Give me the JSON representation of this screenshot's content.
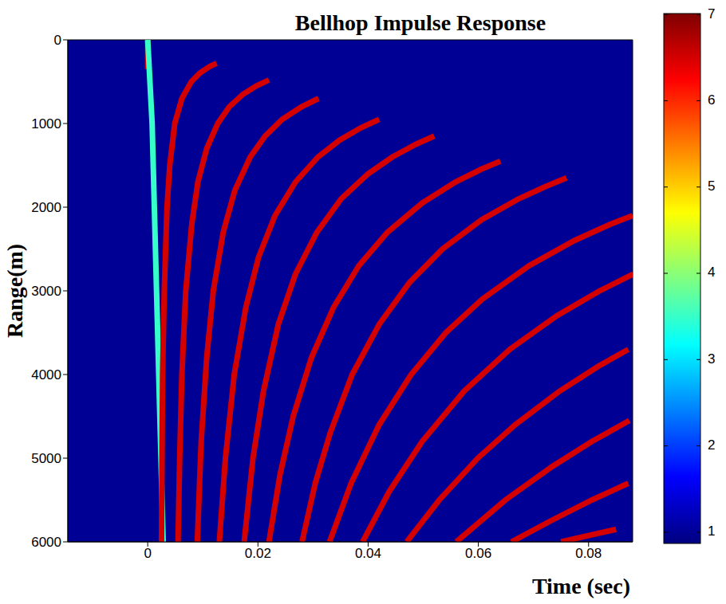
{
  "chart_data": {
    "type": "heatmap",
    "title": "Bellhop Impulse Response",
    "x_label": "Time (sec)",
    "y_label": "Range(m)",
    "xlim": [
      -0.0145,
      0.088
    ],
    "xticks": [
      0,
      0.02,
      0.04,
      0.06,
      0.08
    ],
    "ylim": [
      0,
      6000
    ],
    "yticks": [
      0,
      1000,
      2000,
      3000,
      4000,
      5000,
      6000
    ],
    "grid": false,
    "background_value": 1,
    "colorbar": {
      "range": [
        0.87,
        7.01
      ],
      "ticks": [
        1,
        2,
        3,
        4,
        5,
        6,
        7
      ]
    },
    "series": [
      {
        "value": 6.5,
        "x": [
          0,
          0
        ],
        "y": [
          0,
          350
        ]
      },
      {
        "value": 3.5,
        "x": [
          0,
          0.0008,
          0.0012,
          0.0016,
          0.002,
          0.0024,
          0.0028
        ],
        "y": [
          0,
          1000,
          2000,
          3000,
          4000,
          5000,
          6000
        ]
      },
      {
        "value": 6.5,
        "x": [
          0.0125,
          0.0112,
          0.0094,
          0.0079,
          0.0062,
          0.0049,
          0.004,
          0.0035,
          0.003,
          0.0027,
          0.0026,
          0.0025
        ],
        "y": [
          280,
          320,
          400,
          500,
          700,
          1000,
          1500,
          2000,
          3000,
          4000,
          5000,
          6000
        ]
      },
      {
        "value": 6.5,
        "x": [
          0.022,
          0.0197,
          0.0173,
          0.0148,
          0.0127,
          0.0107,
          0.0091,
          0.008,
          0.0069,
          0.0062,
          0.0058,
          0.0055
        ],
        "y": [
          480,
          550,
          650,
          800,
          1000,
          1300,
          1700,
          2200,
          3000,
          4000,
          5000,
          6000
        ]
      },
      {
        "value": 6.5,
        "x": [
          0.031,
          0.0279,
          0.0244,
          0.0213,
          0.0186,
          0.0158,
          0.0137,
          0.0119,
          0.0107,
          0.0097,
          0.009
        ],
        "y": [
          700,
          800,
          950,
          1150,
          1400,
          1800,
          2300,
          3000,
          3800,
          4800,
          6000
        ]
      },
      {
        "value": 6.5,
        "x": [
          0.042,
          0.0387,
          0.0348,
          0.0309,
          0.0268,
          0.0231,
          0.0201,
          0.0178,
          0.0157,
          0.0141,
          0.013
        ],
        "y": [
          950,
          1050,
          1200,
          1400,
          1700,
          2100,
          2600,
          3200,
          4000,
          5000,
          6000
        ]
      },
      {
        "value": 6.5,
        "x": [
          0.052,
          0.0486,
          0.0444,
          0.04,
          0.0351,
          0.0307,
          0.0268,
          0.0237,
          0.021,
          0.0191,
          0.0175
        ],
        "y": [
          1150,
          1250,
          1400,
          1600,
          1900,
          2300,
          2800,
          3400,
          4200,
          5000,
          6000
        ]
      },
      {
        "value": 6.5,
        "x": [
          0.064,
          0.0604,
          0.0558,
          0.0498,
          0.0435,
          0.0383,
          0.0337,
          0.0297,
          0.0264,
          0.024,
          0.022
        ],
        "y": [
          1450,
          1550,
          1700,
          1950,
          2300,
          2700,
          3200,
          3800,
          4500,
          5200,
          6000
        ]
      },
      {
        "value": 6.5,
        "x": [
          0.076,
          0.0723,
          0.0673,
          0.0606,
          0.0535,
          0.0475,
          0.042,
          0.0371,
          0.0331,
          0.0304,
          0.028
        ],
        "y": [
          1650,
          1750,
          1900,
          2150,
          2500,
          2900,
          3400,
          4000,
          4700,
          5300,
          6000
        ]
      },
      {
        "value": 6.5,
        "x": [
          0.088,
          0.0841,
          0.0774,
          0.0692,
          0.0607,
          0.0541,
          0.0478,
          0.042,
          0.0369,
          0.033
        ],
        "y": [
          2100,
          2200,
          2400,
          2700,
          3100,
          3500,
          4000,
          4600,
          5300,
          6000
        ]
      },
      {
        "value": 6.5,
        "x": [
          0.0881,
          0.082,
          0.0742,
          0.0657,
          0.0574,
          0.0498,
          0.0438,
          0.039
        ],
        "y": [
          2800,
          3000,
          3300,
          3700,
          4200,
          4800,
          5400,
          6000
        ]
      },
      {
        "value": 6.5,
        "x": [
          0.0872,
          0.0818,
          0.0747,
          0.0667,
          0.0599,
          0.0529,
          0.047
        ],
        "y": [
          3700,
          3900,
          4200,
          4600,
          5000,
          5500,
          6000
        ]
      },
      {
        "value": 6.5,
        "x": [
          0.0874,
          0.0806,
          0.0734,
          0.0649,
          0.056
        ],
        "y": [
          4550,
          4800,
          5100,
          5500,
          6000
        ]
      },
      {
        "value": 6.5,
        "x": [
          0.0872,
          0.0806,
          0.0731,
          0.066
        ],
        "y": [
          5300,
          5500,
          5750,
          6000
        ]
      },
      {
        "value": 6.5,
        "x": [
          0.085,
          0.075
        ],
        "y": [
          5850,
          6000
        ]
      }
    ]
  }
}
